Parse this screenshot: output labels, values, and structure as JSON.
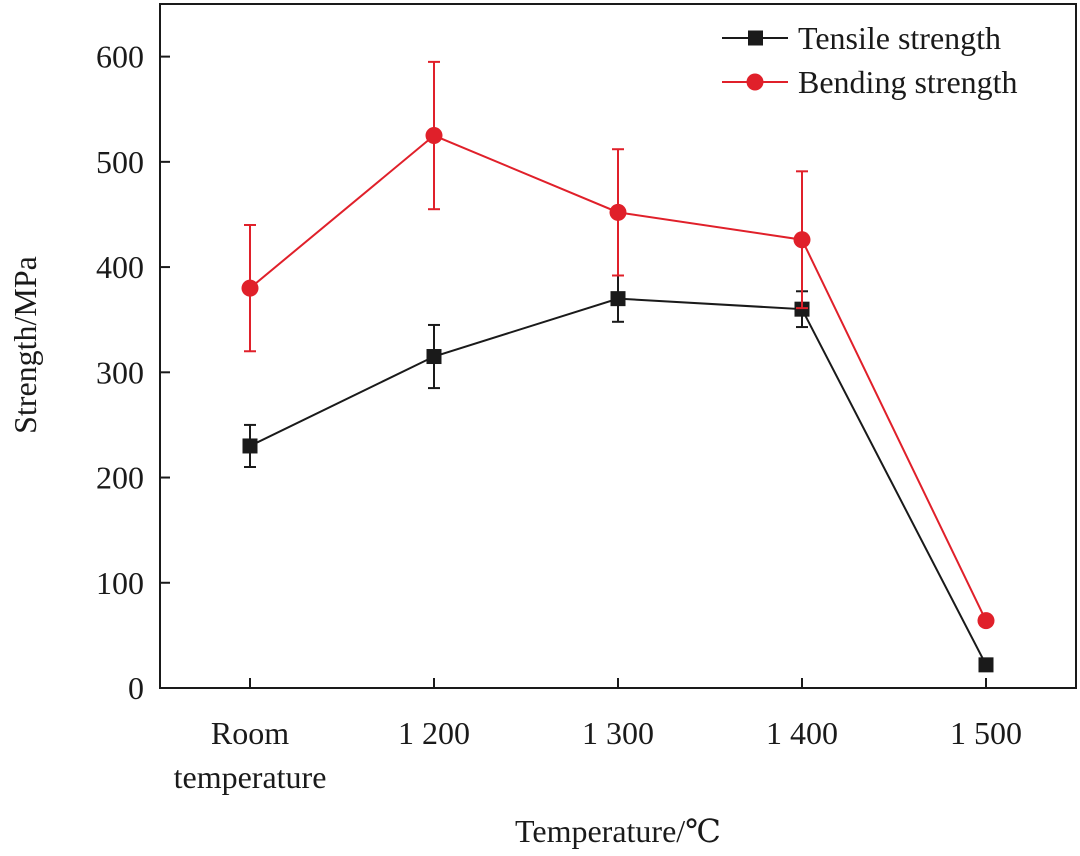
{
  "chart_data": {
    "type": "line",
    "categories": [
      [
        "Room",
        "temperature"
      ],
      [
        "1 200"
      ],
      [
        "1 300"
      ],
      [
        "1 400"
      ],
      [
        "1 500"
      ]
    ],
    "xlabel": "Temperature/℃",
    "ylabel": "Strength/MPa",
    "ylim": [
      0,
      650
    ],
    "yticks": [
      0,
      100,
      200,
      300,
      400,
      500,
      600
    ],
    "grid": false,
    "legend_position": "top-right",
    "series": [
      {
        "name": "Tensile strength",
        "marker": "square",
        "color": "#1a1a1a",
        "values": [
          230,
          315,
          370,
          360,
          22
        ],
        "errors": [
          20,
          30,
          22,
          17,
          null
        ]
      },
      {
        "name": "Bending strength",
        "marker": "circle",
        "color": "#e0202a",
        "values": [
          380,
          525,
          452,
          426,
          64
        ],
        "errors": [
          60,
          70,
          60,
          65,
          null
        ]
      }
    ]
  }
}
